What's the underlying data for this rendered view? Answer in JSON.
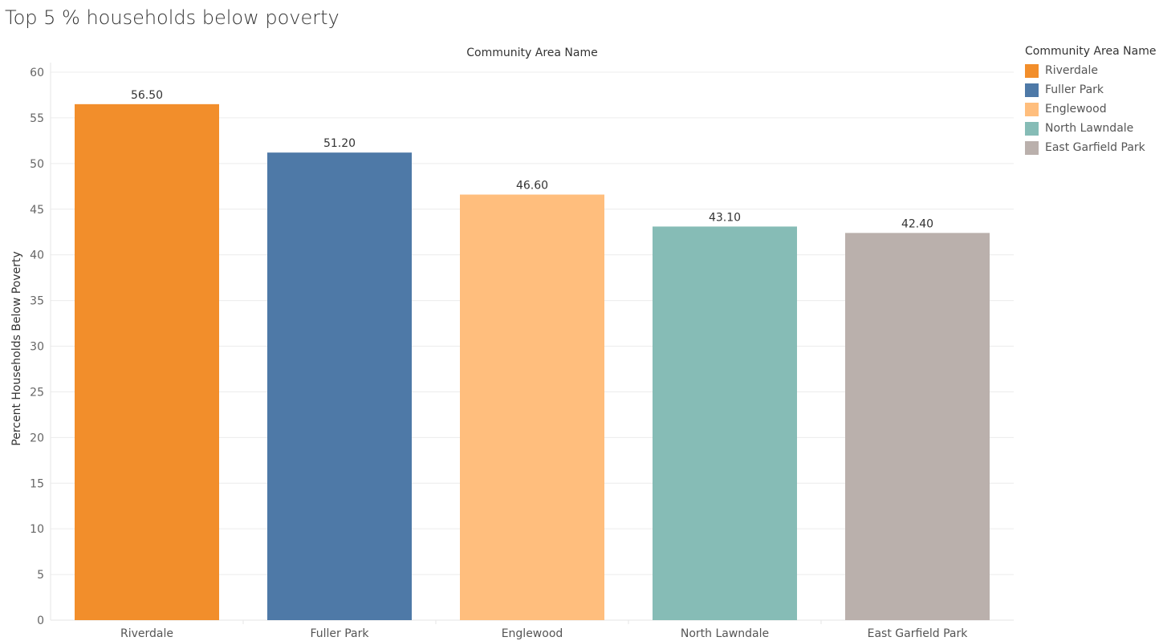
{
  "chart_data": {
    "type": "bar",
    "title": "Top 5 % households below poverty",
    "column_header": "Community Area Name",
    "ylabel": "Percent Households Below Poverty",
    "xlabel": "",
    "ylim": [
      0,
      60
    ],
    "yticks": [
      0,
      5,
      10,
      15,
      20,
      25,
      30,
      35,
      40,
      45,
      50,
      55,
      60
    ],
    "categories": [
      "Riverdale",
      "Fuller Park",
      "Englewood",
      "North Lawndale",
      "East Garfield Park"
    ],
    "values": [
      56.5,
      51.2,
      46.6,
      43.1,
      42.4
    ],
    "value_labels": [
      "56.50",
      "51.20",
      "46.60",
      "43.10",
      "42.40"
    ],
    "colors": [
      "#f28e2b",
      "#4e79a7",
      "#ffbe7d",
      "#86bcb6",
      "#bab0ac"
    ],
    "grid": true,
    "legend": {
      "title": "Community Area Name",
      "placement": "right",
      "entries": [
        "Riverdale",
        "Fuller Park",
        "Englewood",
        "North Lawndale",
        "East Garfield Park"
      ]
    }
  }
}
